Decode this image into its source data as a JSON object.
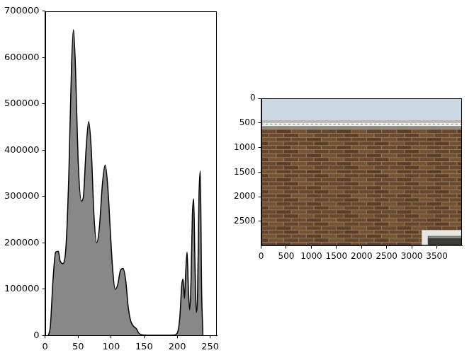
{
  "chart_data": [
    {
      "type": "area",
      "x": [
        5,
        8,
        12,
        16,
        20,
        23,
        27,
        32,
        36,
        40,
        43,
        46,
        50,
        55,
        58,
        62,
        66,
        70,
        74,
        78,
        82,
        87,
        91,
        95,
        99,
        102,
        106,
        110,
        114,
        118,
        122,
        126,
        130,
        134,
        138,
        142,
        146,
        150,
        160,
        180,
        195,
        200,
        204,
        207,
        209,
        211,
        213,
        215,
        217,
        219,
        221,
        223,
        225,
        227,
        229,
        231,
        233,
        235,
        237,
        239
      ],
      "values": [
        0,
        20000,
        120000,
        180000,
        182000,
        160000,
        155000,
        200000,
        350000,
        580000,
        660000,
        580000,
        380000,
        290000,
        300000,
        400000,
        462000,
        400000,
        260000,
        200000,
        230000,
        330000,
        368000,
        320000,
        220000,
        150000,
        100000,
        110000,
        140000,
        145000,
        120000,
        60000,
        30000,
        20000,
        15000,
        5000,
        2000,
        1000,
        500,
        500,
        1000,
        5000,
        40000,
        110000,
        122000,
        80000,
        140000,
        180000,
        100000,
        55000,
        120000,
        260000,
        295000,
        150000,
        50000,
        100000,
        300000,
        355000,
        100000,
        0
      ],
      "color": "#888888",
      "xlim": [
        0,
        260
      ],
      "xticks": [
        0,
        50,
        100,
        150,
        200,
        250
      ],
      "ylim": [
        0,
        700000
      ],
      "yticks": [
        0,
        100000,
        200000,
        300000,
        400000,
        500000,
        600000,
        700000
      ],
      "grid": false
    },
    {
      "type": "image",
      "xlim": [
        0,
        4000
      ],
      "xticks": [
        0,
        500,
        1000,
        1500,
        2000,
        2500,
        3000,
        3500
      ],
      "ylim": [
        3000,
        0
      ],
      "yticks": [
        0,
        500,
        1000,
        1500,
        2000,
        2500
      ],
      "grid": false
    }
  ]
}
